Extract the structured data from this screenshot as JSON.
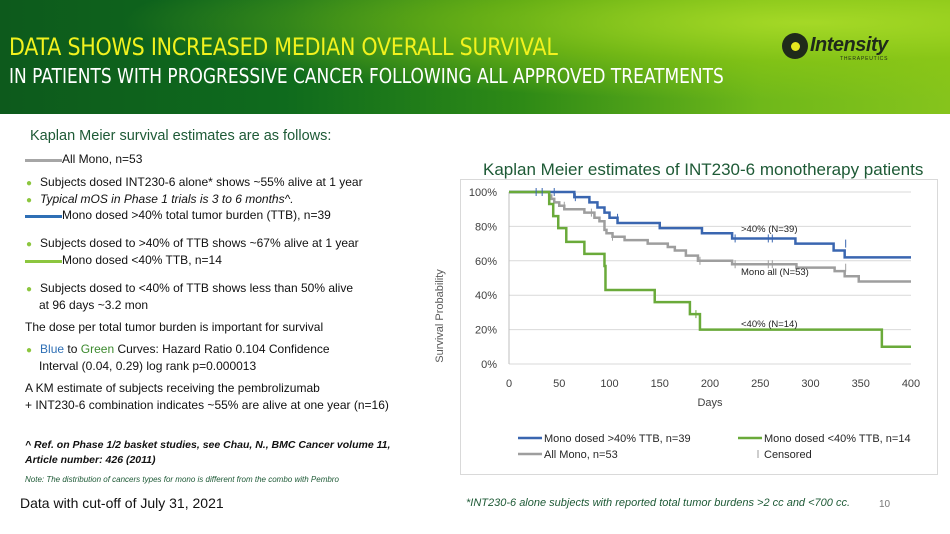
{
  "header": {
    "title": "DATA SHOWS INCREASED MEDIAN OVERALL SURVIVAL",
    "subtitle": "IN PATIENTS WITH PROGRESSIVE CANCER FOLLOWING ALL APPROVED TREATMENTS",
    "logo_name": "Intensity",
    "logo_sub": "THERAPEUTICS",
    "title_color": "#f2f21e"
  },
  "left": {
    "intro": "Kaplan Meier survival estimates are as follows:",
    "all_mono_label": "All Mono, n=53",
    "bullet1": "Subjects dosed INT230-6 alone* shows ~55% alive at 1 year",
    "bullet2": "Typical mOS in Phase 1 trials is 3 to 6 months^.",
    "gt40_label": "Mono dosed >40% total tumor burden (TTB), n=39",
    "bullet3": "Subjects dosed to >40% of TTB shows ~67% alive at 1 year",
    "lt40_label": "Mono dosed <40% TTB, n=14",
    "bullet4_line1": "Subjects dosed to <40% of TTB shows less than 50% alive",
    "bullet4_line2": "at 96 days ~3.2 mon",
    "dose_statement": "The dose per total tumor burden is important for survival",
    "hr_blue": "Blue",
    "hr_to": " to ",
    "hr_green": "Green",
    "hr_rest": " Curves: Hazard Ratio 0.104 Confidence",
    "hr_line2": "Interval (0.04, 0.29) log rank p=0.000013",
    "combo_line1": "A KM estimate of subjects receiving the pembrolizumab",
    "combo_line2": "+ INT230-6 combination indicates ~55% are alive at one year (n=16)",
    "ref_line1": "^ Ref. on Phase 1/2 basket studies, see Chau, N., BMC Cancer volume 11,",
    "ref_line2": "Article number: 426 (2011)",
    "note": "Note: The distribution of cancers types for mono is different from the combo with Pembro",
    "cutoff": "Data with cut-off of July 31, 2021"
  },
  "footnote": "*INT230-6 alone subjects with reported total tumor burdens >2 cc and <700 cc.",
  "page_number": "10",
  "chart_data": {
    "type": "line",
    "subtype": "kaplan-meier step",
    "title": "Kaplan Meier estimates of INT230-6 monotherapy patients",
    "xlabel": "Days",
    "ylabel": "Survival Probability",
    "xlim": [
      0,
      400
    ],
    "ylim": [
      0,
      100
    ],
    "x_ticks": [
      "0",
      "50",
      "100",
      "150",
      "200",
      "250",
      "300",
      "350",
      "400"
    ],
    "y_ticks": [
      "0%",
      "20%",
      "40%",
      "60%",
      "80%",
      "100%"
    ],
    "grid": "horizontal",
    "legend_position": "bottom",
    "series": [
      {
        "name": "Mono dosed >40% TTB, n=39",
        "annotation": ">40% (N=39)",
        "color": "#3a66b0",
        "steps": [
          [
            0,
            100
          ],
          [
            65,
            97
          ],
          [
            80,
            94
          ],
          [
            88,
            91
          ],
          [
            95,
            88
          ],
          [
            100,
            85
          ],
          [
            108,
            82
          ],
          [
            150,
            79
          ],
          [
            192,
            76
          ],
          [
            222,
            73
          ],
          [
            285,
            70
          ],
          [
            323,
            66
          ],
          [
            334,
            62
          ],
          [
            400,
            62
          ]
        ],
        "censored": [
          [
            27,
            100
          ],
          [
            33,
            100
          ],
          [
            45,
            100
          ],
          [
            66,
            97
          ],
          [
            108,
            85
          ],
          [
            225,
            73
          ],
          [
            258,
            73
          ],
          [
            262,
            73
          ],
          [
            335,
            70
          ]
        ]
      },
      {
        "name": "All Mono, n=53",
        "annotation": "Mono all  (N=53)",
        "color": "#9e9e9e",
        "steps": [
          [
            0,
            100
          ],
          [
            40,
            98
          ],
          [
            42,
            96
          ],
          [
            45,
            94
          ],
          [
            50,
            92
          ],
          [
            55,
            90
          ],
          [
            75,
            88
          ],
          [
            85,
            85
          ],
          [
            90,
            83
          ],
          [
            95,
            78
          ],
          [
            97,
            76
          ],
          [
            103,
            74
          ],
          [
            115,
            72
          ],
          [
            138,
            70
          ],
          [
            158,
            68
          ],
          [
            165,
            66
          ],
          [
            176,
            63
          ],
          [
            188,
            60
          ],
          [
            222,
            58
          ],
          [
            286,
            56
          ],
          [
            324,
            54
          ],
          [
            334,
            51
          ],
          [
            348,
            48
          ],
          [
            400,
            48
          ]
        ],
        "censored": [
          [
            55,
            92
          ],
          [
            82,
            88
          ],
          [
            103,
            74
          ],
          [
            190,
            60
          ],
          [
            225,
            58
          ],
          [
            258,
            58
          ],
          [
            262,
            58
          ],
          [
            335,
            56
          ]
        ]
      },
      {
        "name": "Mono dosed <40% TTB, n=14",
        "annotation": "<40% (N=14)",
        "color": "#6aaa3a",
        "steps": [
          [
            0,
            100
          ],
          [
            40,
            93
          ],
          [
            44,
            86
          ],
          [
            49,
            79
          ],
          [
            57,
            71
          ],
          [
            75,
            64
          ],
          [
            95,
            57
          ],
          [
            96,
            43
          ],
          [
            145,
            36
          ],
          [
            180,
            29
          ],
          [
            190,
            20
          ],
          [
            371,
            10
          ],
          [
            400,
            10
          ]
        ],
        "censored": [
          [
            186,
            29
          ]
        ]
      }
    ],
    "legend": [
      {
        "label": "Mono dosed >40% TTB, n=39",
        "color": "#3a66b0",
        "marker": "line"
      },
      {
        "label": "Mono dosed <40% TTB, n=14",
        "color": "#6aaa3a",
        "marker": "line"
      },
      {
        "label": "All Mono, n=53",
        "color": "#9e9e9e",
        "marker": "line"
      },
      {
        "label": "Censored",
        "color": "#9e9e9e",
        "marker": "tick"
      }
    ]
  }
}
